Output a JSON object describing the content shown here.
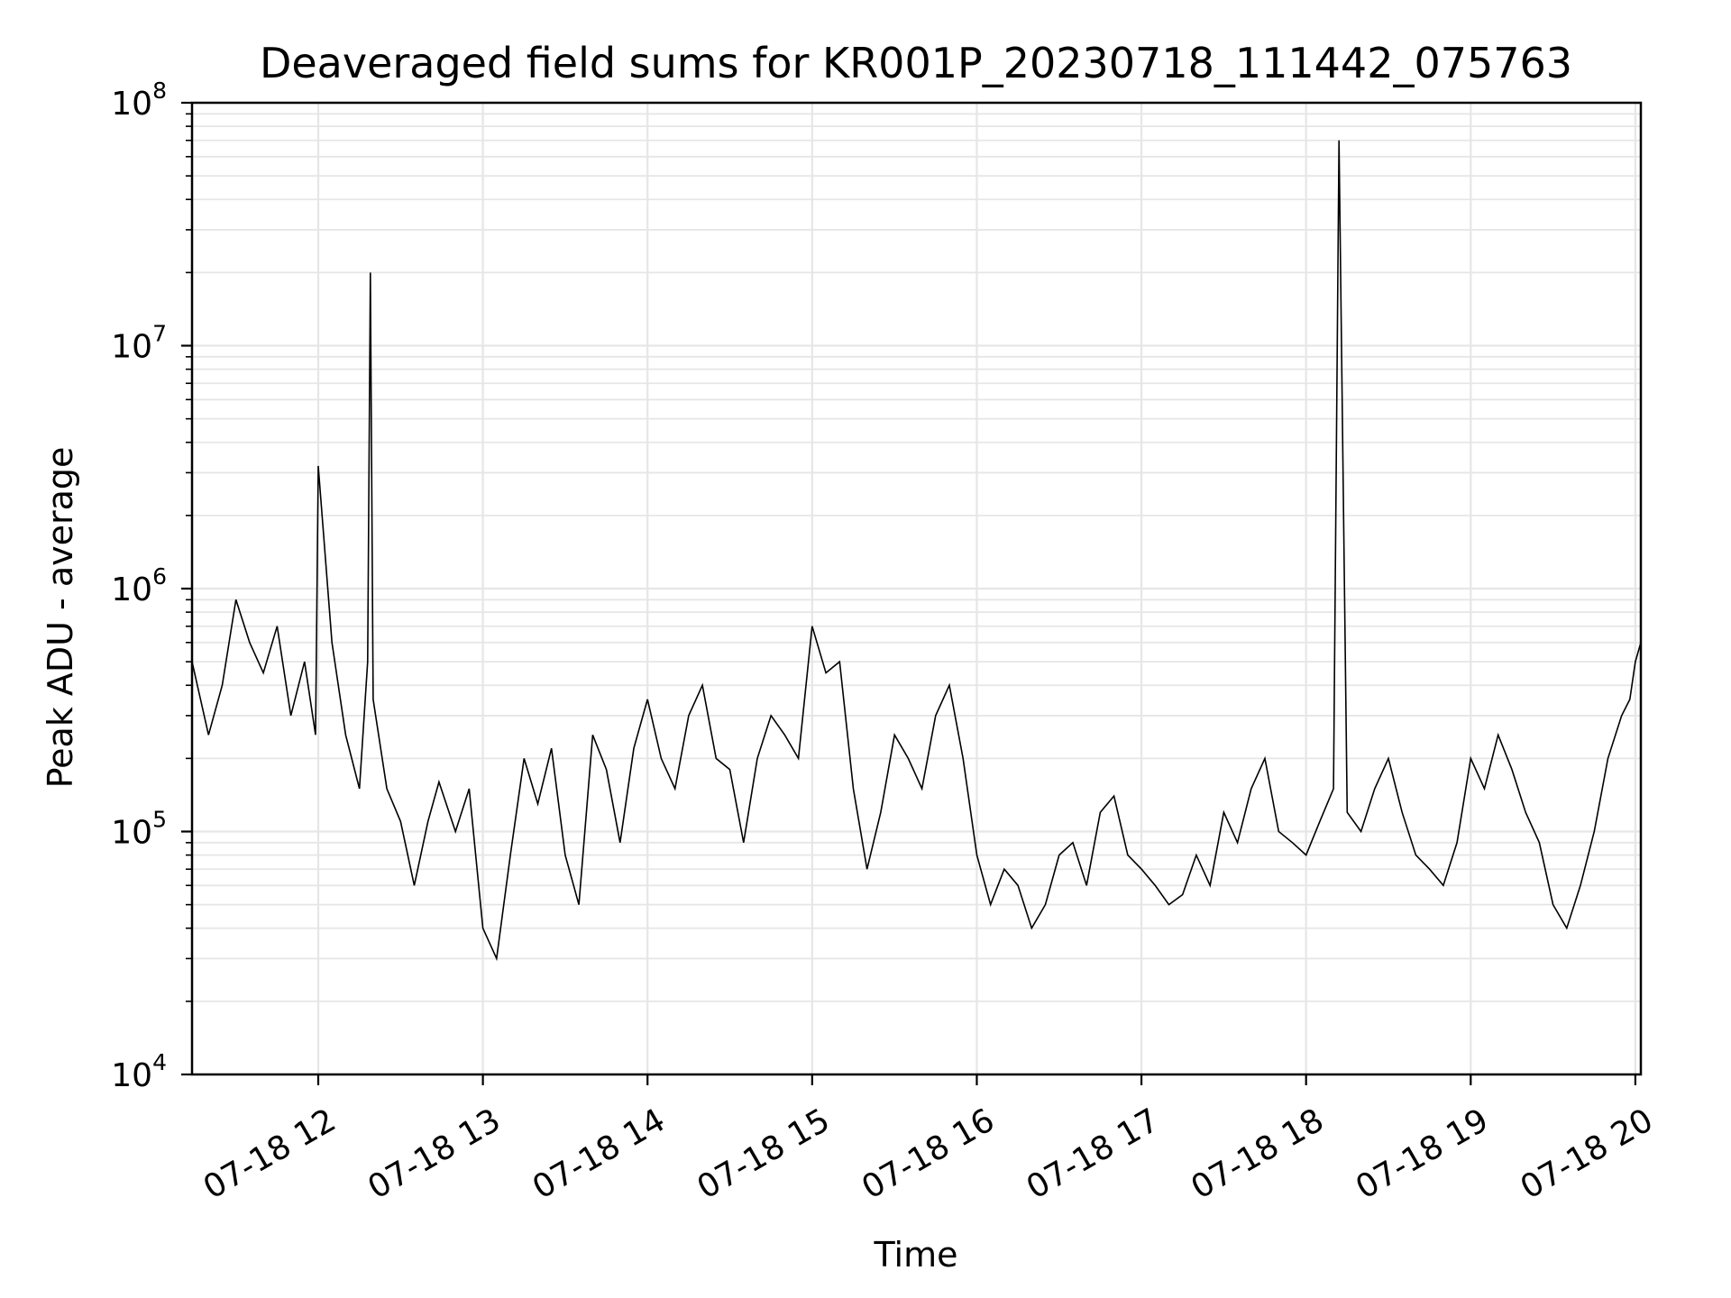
{
  "chart_data": {
    "type": "line",
    "title": "Deaveraged field sums for KR001P_20230718_111442_075763",
    "xlabel": "Time",
    "ylabel": "Peak ADU - average",
    "y_scale": "log",
    "ylim": [
      10000,
      100000000
    ],
    "xlim": [
      "07-18 11:14",
      "07-18 20:02"
    ],
    "y_ticks": [
      {
        "base": "10",
        "exp": "4",
        "value": 10000
      },
      {
        "base": "10",
        "exp": "5",
        "value": 100000
      },
      {
        "base": "10",
        "exp": "6",
        "value": 1000000
      },
      {
        "base": "10",
        "exp": "7",
        "value": 10000000
      },
      {
        "base": "10",
        "exp": "8",
        "value": 100000000
      }
    ],
    "x_ticks": [
      {
        "label": "07-18 12",
        "time": "07-18 12:00"
      },
      {
        "label": "07-18 13",
        "time": "07-18 13:00"
      },
      {
        "label": "07-18 14",
        "time": "07-18 14:00"
      },
      {
        "label": "07-18 15",
        "time": "07-18 15:00"
      },
      {
        "label": "07-18 16",
        "time": "07-18 16:00"
      },
      {
        "label": "07-18 17",
        "time": "07-18 17:00"
      },
      {
        "label": "07-18 18",
        "time": "07-18 18:00"
      },
      {
        "label": "07-18 19",
        "time": "07-18 19:00"
      },
      {
        "label": "07-18 20",
        "time": "07-18 20:00"
      }
    ],
    "grid": true,
    "line_color": "#000000",
    "grid_color": "#e6e6e6",
    "series": [
      {
        "x": [
          "07-18 11:14",
          "07-18 11:20",
          "07-18 11:25",
          "07-18 11:30",
          "07-18 11:35",
          "07-18 11:40",
          "07-18 11:45",
          "07-18 11:50",
          "07-18 11:55",
          "07-18 11:59",
          "07-18 12:00",
          "07-18 12:05",
          "07-18 12:10",
          "07-18 12:15",
          "07-18 12:18",
          "07-18 12:19",
          "07-18 12:20",
          "07-18 12:25",
          "07-18 12:30",
          "07-18 12:35",
          "07-18 12:40",
          "07-18 12:44",
          "07-18 12:50",
          "07-18 12:55",
          "07-18 13:00",
          "07-18 13:05",
          "07-18 13:10",
          "07-18 13:15",
          "07-18 13:20",
          "07-18 13:25",
          "07-18 13:30",
          "07-18 13:35",
          "07-18 13:40",
          "07-18 13:45",
          "07-18 13:50",
          "07-18 13:55",
          "07-18 14:00",
          "07-18 14:05",
          "07-18 14:10",
          "07-18 14:15",
          "07-18 14:20",
          "07-18 14:25",
          "07-18 14:30",
          "07-18 14:35",
          "07-18 14:40",
          "07-18 14:45",
          "07-18 14:50",
          "07-18 14:55",
          "07-18 15:00",
          "07-18 15:05",
          "07-18 15:10",
          "07-18 15:15",
          "07-18 15:20",
          "07-18 15:25",
          "07-18 15:30",
          "07-18 15:35",
          "07-18 15:40",
          "07-18 15:45",
          "07-18 15:50",
          "07-18 15:55",
          "07-18 16:00",
          "07-18 16:05",
          "07-18 16:10",
          "07-18 16:15",
          "07-18 16:20",
          "07-18 16:25",
          "07-18 16:30",
          "07-18 16:35",
          "07-18 16:40",
          "07-18 16:45",
          "07-18 16:50",
          "07-18 16:55",
          "07-18 17:00",
          "07-18 17:05",
          "07-18 17:10",
          "07-18 17:15",
          "07-18 17:20",
          "07-18 17:25",
          "07-18 17:30",
          "07-18 17:35",
          "07-18 17:40",
          "07-18 17:45",
          "07-18 17:50",
          "07-18 17:55",
          "07-18 18:00",
          "07-18 18:05",
          "07-18 18:10",
          "07-18 18:12",
          "07-18 18:15",
          "07-18 18:20",
          "07-18 18:25",
          "07-18 18:30",
          "07-18 18:35",
          "07-18 18:40",
          "07-18 18:45",
          "07-18 18:50",
          "07-18 18:55",
          "07-18 19:00",
          "07-18 19:05",
          "07-18 19:10",
          "07-18 19:15",
          "07-18 19:20",
          "07-18 19:25",
          "07-18 19:30",
          "07-18 19:35",
          "07-18 19:40",
          "07-18 19:45",
          "07-18 19:50",
          "07-18 19:55",
          "07-18 19:58",
          "07-18 20:00",
          "07-18 20:02"
        ],
        "values": [
          500000,
          250000,
          400000,
          900000,
          600000,
          450000,
          700000,
          300000,
          500000,
          250000,
          3200000,
          600000,
          250000,
          150000,
          500000,
          20000000,
          350000,
          150000,
          110000,
          60000,
          110000,
          160000,
          100000,
          150000,
          40000,
          30000,
          80000,
          200000,
          130000,
          220000,
          80000,
          50000,
          250000,
          180000,
          90000,
          220000,
          350000,
          200000,
          150000,
          300000,
          400000,
          200000,
          180000,
          90000,
          200000,
          300000,
          250000,
          200000,
          700000,
          450000,
          500000,
          150000,
          70000,
          120000,
          250000,
          200000,
          150000,
          300000,
          400000,
          200000,
          80000,
          50000,
          70000,
          60000,
          40000,
          50000,
          80000,
          90000,
          60000,
          120000,
          140000,
          80000,
          70000,
          60000,
          50000,
          55000,
          80000,
          60000,
          120000,
          90000,
          150000,
          200000,
          100000,
          90000,
          80000,
          110000,
          150000,
          70000000,
          120000,
          100000,
          150000,
          200000,
          120000,
          80000,
          70000,
          60000,
          90000,
          200000,
          150000,
          250000,
          180000,
          120000,
          90000,
          50000,
          40000,
          60000,
          100000,
          200000,
          300000,
          350000,
          500000,
          600000
        ]
      }
    ]
  }
}
